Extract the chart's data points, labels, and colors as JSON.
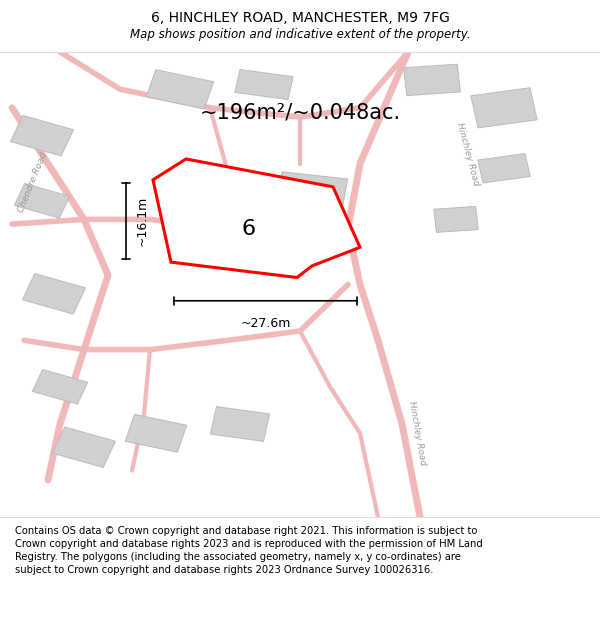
{
  "title_line1": "6, HINCHLEY ROAD, MANCHESTER, M9 7FG",
  "title_line2": "Map shows position and indicative extent of the property.",
  "area_text": "~196m²/~0.048ac.",
  "number_label": "6",
  "dim_width": "~27.6m",
  "dim_height": "~16.1m",
  "footer_text": "Contains OS data © Crown copyright and database right 2021. This information is subject to Crown copyright and database rights 2023 and is reproduced with the permission of HM Land Registry. The polygons (including the associated geometry, namely x, y co-ordinates) are subject to Crown copyright and database rights 2023 Ordnance Survey 100026316.",
  "map_bg": "#f2f2f2",
  "road_color": "#f0b8b8",
  "building_color": "#d0d0d0",
  "building_ec": "#bbbbbb",
  "plot_color": "#ff0000",
  "title_fontsize": 10,
  "subtitle_fontsize": 8.5,
  "area_fontsize": 15,
  "number_fontsize": 16,
  "dim_fontsize": 9,
  "footer_fontsize": 7.2
}
